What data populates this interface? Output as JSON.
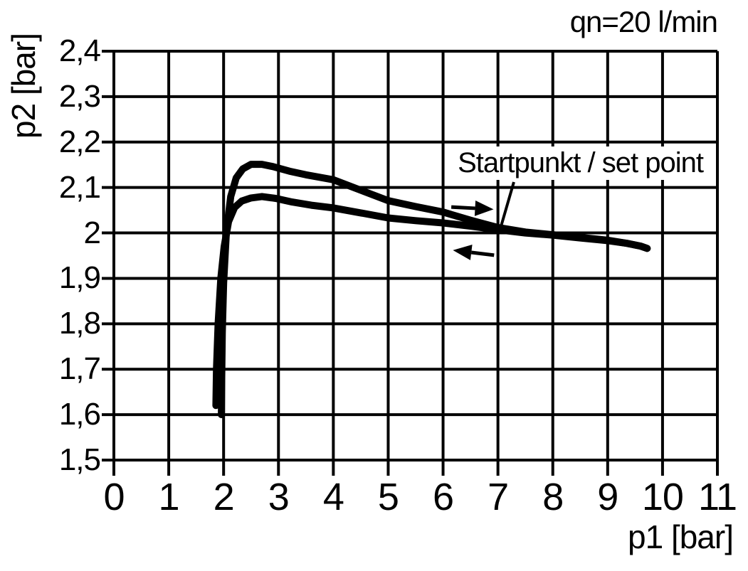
{
  "chart_data": {
    "type": "line",
    "title": "qn=20 l/min",
    "xlabel": "p1 [bar]",
    "ylabel": "p2 [bar]",
    "xlim": [
      0,
      11
    ],
    "ylim": [
      1.5,
      2.4
    ],
    "grid": true,
    "decimal_separator": ",",
    "x_ticks": {
      "values": [
        0,
        1,
        2,
        3,
        4,
        5,
        6,
        7,
        8,
        9,
        10,
        11
      ],
      "labels": [
        "0",
        "1",
        "2",
        "3",
        "4",
        "5",
        "6",
        "7",
        "8",
        "9",
        "10",
        "11"
      ]
    },
    "y_ticks": {
      "values": [
        2.4,
        2.3,
        2.2,
        2.1,
        2.0,
        1.9,
        1.8,
        1.7,
        1.6,
        1.5
      ],
      "labels": [
        "2,4",
        "2,3",
        "2,2",
        "2,1",
        "2",
        "1,9",
        "1,8",
        "1,7",
        "1,6",
        "1,5"
      ]
    },
    "series": [
      {
        "name": "curve_upper",
        "points": [
          [
            1.96,
            1.6
          ],
          [
            1.965,
            1.68
          ],
          [
            1.975,
            1.78
          ],
          [
            2.0,
            1.89
          ],
          [
            2.05,
            2.0
          ],
          [
            2.13,
            2.08
          ],
          [
            2.23,
            2.121
          ],
          [
            2.35,
            2.141
          ],
          [
            2.5,
            2.151
          ],
          [
            2.7,
            2.151
          ],
          [
            2.9,
            2.146
          ],
          [
            3.2,
            2.136
          ],
          [
            3.5,
            2.128
          ],
          [
            4.0,
            2.117
          ],
          [
            4.5,
            2.094
          ],
          [
            5.0,
            2.071
          ],
          [
            5.5,
            2.058
          ],
          [
            6.0,
            2.046
          ],
          [
            6.5,
            2.028
          ],
          [
            7.0,
            2.012
          ],
          [
            7.5,
            2.002
          ],
          [
            8.0,
            1.996
          ],
          [
            8.5,
            1.99
          ],
          [
            9.0,
            1.984
          ],
          [
            9.35,
            1.977
          ],
          [
            9.6,
            1.971
          ],
          [
            9.72,
            1.966
          ]
        ]
      },
      {
        "name": "curve_lower",
        "points": [
          [
            1.86,
            1.62
          ],
          [
            1.87,
            1.7
          ],
          [
            1.9,
            1.8
          ],
          [
            1.95,
            1.9
          ],
          [
            2.01,
            1.97
          ],
          [
            2.09,
            2.025
          ],
          [
            2.2,
            2.056
          ],
          [
            2.33,
            2.07
          ],
          [
            2.5,
            2.077
          ],
          [
            2.7,
            2.08
          ],
          [
            2.95,
            2.076
          ],
          [
            3.25,
            2.068
          ],
          [
            3.6,
            2.061
          ],
          [
            4.0,
            2.055
          ],
          [
            4.5,
            2.044
          ],
          [
            5.0,
            2.033
          ],
          [
            5.5,
            2.027
          ],
          [
            6.0,
            2.022
          ],
          [
            6.5,
            2.015
          ],
          [
            7.0,
            2.007
          ],
          [
            7.5,
            2.0
          ],
          [
            8.0,
            1.995
          ],
          [
            8.5,
            1.989
          ],
          [
            9.0,
            1.983
          ],
          [
            9.35,
            1.977
          ],
          [
            9.6,
            1.971
          ],
          [
            9.72,
            1.966
          ]
        ]
      }
    ],
    "annotations": {
      "set_point_label": "Startpunkt / set point",
      "set_point_xy": [
        7.05,
        2.01
      ],
      "leader_line": {
        "from": [
          7.29,
          2.112
        ],
        "to": [
          7.05,
          2.012
        ]
      },
      "direction_arrows": [
        {
          "from": [
            6.15,
            2.057
          ],
          "to": [
            6.92,
            2.052
          ],
          "direction": "right"
        },
        {
          "from": [
            6.93,
            1.951
          ],
          "to": [
            6.18,
            1.962
          ],
          "direction": "left"
        }
      ]
    },
    "colors": {
      "line": "#000000",
      "grid": "#000000",
      "text": "#000000",
      "background": "#ffffff"
    }
  }
}
